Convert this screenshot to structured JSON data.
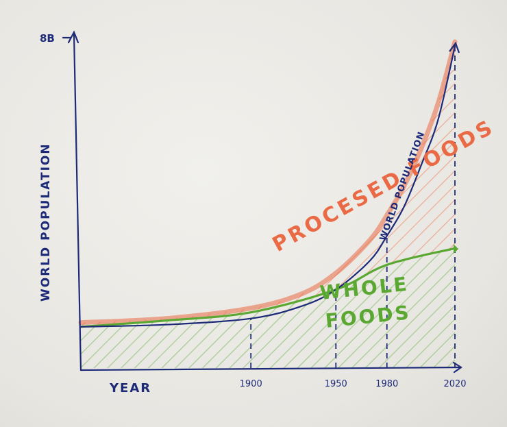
{
  "chart_data": {
    "type": "area",
    "title": "",
    "xlabel": "YEAR",
    "ylabel": "WORLD POPULATION",
    "y_top_label": "8B",
    "x_ticks": [
      "1900",
      "1950",
      "1980",
      "2020"
    ],
    "x_range": [
      1800,
      2020
    ],
    "y_range": [
      0,
      8
    ],
    "series": [
      {
        "name": "WORLD POPULATION",
        "color": "#1c2a78",
        "x": [
          1800,
          1850,
          1900,
          1930,
          1950,
          1970,
          1980,
          1990,
          2000,
          2010,
          2020
        ],
        "values": [
          1.0,
          1.05,
          1.2,
          1.5,
          1.9,
          2.6,
          3.2,
          3.9,
          4.9,
          6.0,
          7.8
        ]
      },
      {
        "name": "WHOLE FOODS",
        "color": "#5aa832",
        "x": [
          1800,
          1850,
          1900,
          1950,
          1980,
          2020
        ],
        "values": [
          1.0,
          1.15,
          1.35,
          1.9,
          2.5,
          2.9
        ]
      },
      {
        "name": "PROCESSED FOODS",
        "color": "#ea6a45",
        "x": [
          1800,
          1850,
          1900,
          1930,
          1950,
          1970,
          1980,
          1990,
          2000,
          2010,
          2020
        ],
        "values": [
          1.1,
          1.2,
          1.45,
          1.8,
          2.3,
          3.1,
          3.7,
          4.4,
          5.3,
          6.4,
          7.9
        ]
      }
    ],
    "annotations": {
      "processed": "PROCESED FOODS",
      "whole_line1": "WHOLE",
      "whole_line2": "FOODS",
      "population": "WORLD POPULATION"
    },
    "grid": false,
    "legend": "none"
  }
}
